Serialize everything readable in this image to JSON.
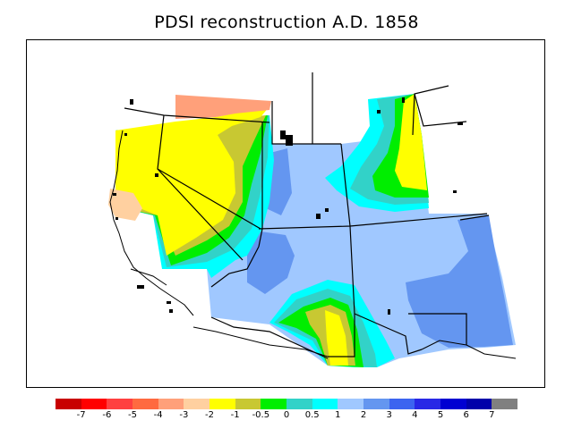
{
  "title": "PDSI reconstruction A.D. 1858",
  "colors": {
    "cat_-7": "#c80000",
    "cat_-6": "#ff0000",
    "cat_-5": "#ff4040",
    "cat_-4": "#ff6a40",
    "cat_-3": "#ffa07a",
    "cat_-2": "#ffd0a0",
    "cat_-1": "#ffff00",
    "cat_-0.5": "#c8c832",
    "cat_0": "#00ee00",
    "cat_0.5": "#32d2c8",
    "cat_1": "#00ffff",
    "cat_2": "#a0c8ff",
    "cat_3": "#6496f0",
    "cat_4": "#3c64f0",
    "cat_5": "#2828e6",
    "cat_6": "#0000d2",
    "cat_7": "#0000aa",
    "cat_over": "#808080"
  },
  "legend": {
    "swatches": [
      "cat_-7",
      "cat_-6",
      "cat_-5",
      "cat_-4",
      "cat_-3",
      "cat_-2",
      "cat_-1",
      "cat_-0.5",
      "cat_0",
      "cat_0.5",
      "cat_1",
      "cat_2",
      "cat_3",
      "cat_4",
      "cat_5",
      "cat_6",
      "cat_7",
      "cat_over"
    ],
    "tick_labels": [
      "-7",
      "-6",
      "-5",
      "-4",
      "-3",
      "-2",
      "-1",
      "-0.5",
      "0",
      "0.5",
      "1",
      "2",
      "3",
      "4",
      "5",
      "6",
      "7"
    ]
  },
  "map": {
    "regions": [
      {
        "name": "northwest-orange-strip",
        "category": "cat_-3"
      },
      {
        "name": "west-yellow-band",
        "category": "cat_-1"
      },
      {
        "name": "california-peach-patch",
        "category": "cat_-2"
      },
      {
        "name": "west-olive-band",
        "category": "cat_-0.5"
      },
      {
        "name": "west-green-band",
        "category": "cat_0"
      },
      {
        "name": "west-teal-band",
        "category": "cat_0.5"
      },
      {
        "name": "west-cyan-band",
        "category": "cat_1"
      },
      {
        "name": "central-light-blue",
        "category": "cat_2"
      },
      {
        "name": "great-basin-blue",
        "category": "cat_3"
      },
      {
        "name": "utah-blue-ridge",
        "category": "cat_3"
      },
      {
        "name": "plains-blue",
        "category": "cat_3"
      },
      {
        "name": "north-cyan-lobe",
        "category": "cat_1"
      },
      {
        "name": "north-teal-lobe",
        "category": "cat_0.5"
      },
      {
        "name": "north-green-lobe",
        "category": "cat_0"
      },
      {
        "name": "north-yellow-lobe",
        "category": "cat_-1"
      },
      {
        "name": "south-cyan-lobe",
        "category": "cat_1"
      },
      {
        "name": "south-teal-lobe",
        "category": "cat_0.5"
      },
      {
        "name": "south-green-lobe",
        "category": "cat_0"
      },
      {
        "name": "south-olive-lobe",
        "category": "cat_-0.5"
      },
      {
        "name": "south-yellow-lobe",
        "category": "cat_-1"
      }
    ]
  }
}
